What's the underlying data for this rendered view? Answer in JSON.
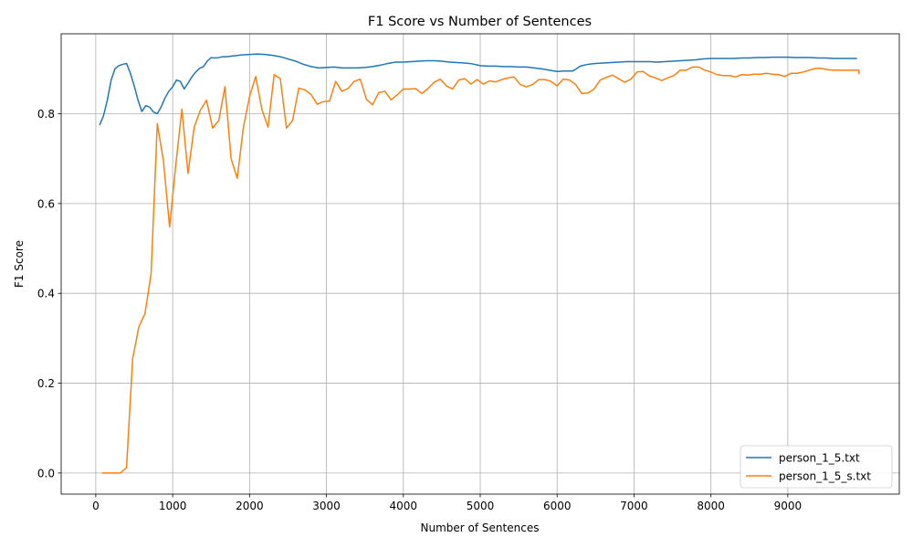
{
  "chart_data": {
    "type": "line",
    "title": "F1 Score vs Number of Sentences",
    "xlabel": "Number of Sentences",
    "ylabel": "F1 Score",
    "xlim": [
      -450,
      10450
    ],
    "ylim": [
      -0.047,
      0.978
    ],
    "xticks": [
      0,
      1000,
      2000,
      3000,
      4000,
      5000,
      6000,
      7000,
      8000,
      9000
    ],
    "yticks": [
      0.0,
      0.2,
      0.4,
      0.6,
      0.8
    ],
    "ytick_labels": [
      "0.0",
      "0.2",
      "0.4",
      "0.6",
      "0.8"
    ],
    "grid": true,
    "legend": "lower-right",
    "series": [
      {
        "name": "person_1_5.txt",
        "color": "#1f77b4",
        "x": [
          50,
          100,
          150,
          200,
          250,
          300,
          350,
          400,
          450,
          500,
          550,
          600,
          650,
          700,
          750,
          800,
          850,
          900,
          950,
          1000,
          1050,
          1100,
          1150,
          1200,
          1250,
          1300,
          1350,
          1400,
          1450,
          1500,
          1550,
          1600,
          1650,
          1700,
          1750,
          1800,
          1900,
          2000,
          2100,
          2200,
          2300,
          2400,
          2500,
          2600,
          2700,
          2800,
          2900,
          3000,
          3100,
          3150,
          3200,
          3300,
          3400,
          3500,
          3600,
          3700,
          3800,
          3900,
          4000,
          4100,
          4200,
          4300,
          4400,
          4500,
          4600,
          4700,
          4800,
          4900,
          5000,
          5100,
          5200,
          5300,
          5400,
          5500,
          5600,
          5700,
          5800,
          5900,
          6000,
          6100,
          6200,
          6250,
          6300,
          6400,
          6500,
          6600,
          6700,
          6800,
          6900,
          7000,
          7100,
          7200,
          7300,
          7400,
          7500,
          7600,
          7700,
          7800,
          7900,
          8000,
          8100,
          8200,
          8300,
          8400,
          8500,
          8600,
          8700,
          8800,
          8900,
          9000,
          9100,
          9200,
          9300,
          9400,
          9500,
          9600,
          9700,
          9800,
          9900
        ],
        "values": [
          0.775,
          0.795,
          0.83,
          0.875,
          0.9,
          0.907,
          0.91,
          0.912,
          0.89,
          0.862,
          0.83,
          0.805,
          0.818,
          0.815,
          0.804,
          0.8,
          0.815,
          0.835,
          0.85,
          0.86,
          0.875,
          0.872,
          0.855,
          0.868,
          0.882,
          0.893,
          0.901,
          0.905,
          0.917,
          0.925,
          0.924,
          0.925,
          0.927,
          0.927,
          0.928,
          0.929,
          0.931,
          0.932,
          0.933,
          0.932,
          0.93,
          0.927,
          0.922,
          0.917,
          0.91,
          0.905,
          0.902,
          0.903,
          0.904,
          0.903,
          0.902,
          0.902,
          0.902,
          0.903,
          0.905,
          0.908,
          0.912,
          0.915,
          0.915,
          0.916,
          0.917,
          0.918,
          0.918,
          0.917,
          0.915,
          0.914,
          0.913,
          0.911,
          0.907,
          0.906,
          0.906,
          0.905,
          0.905,
          0.904,
          0.904,
          0.902,
          0.9,
          0.897,
          0.894,
          0.895,
          0.895,
          0.9,
          0.906,
          0.91,
          0.912,
          0.913,
          0.914,
          0.915,
          0.916,
          0.916,
          0.916,
          0.916,
          0.915,
          0.916,
          0.917,
          0.918,
          0.919,
          0.92,
          0.922,
          0.923,
          0.923,
          0.923,
          0.923,
          0.924,
          0.924,
          0.925,
          0.925,
          0.926,
          0.926,
          0.926,
          0.925,
          0.925,
          0.925,
          0.924,
          0.924,
          0.923,
          0.923,
          0.923,
          0.923
        ]
      },
      {
        "name": "person_1_5_s.txt",
        "color": "#ff7f0e",
        "x": [
          80,
          150,
          250,
          320,
          400,
          480,
          560,
          640,
          720,
          800,
          880,
          960,
          1040,
          1120,
          1200,
          1280,
          1360,
          1440,
          1520,
          1600,
          1680,
          1760,
          1840,
          1920,
          2000,
          2080,
          2160,
          2240,
          2320,
          2400,
          2480,
          2560,
          2640,
          2720,
          2800,
          2880,
          2960,
          3040,
          3120,
          3200,
          3280,
          3360,
          3440,
          3520,
          3600,
          3680,
          3760,
          3840,
          3920,
          4000,
          4080,
          4160,
          4240,
          4320,
          4400,
          4480,
          4560,
          4640,
          4720,
          4800,
          4880,
          4960,
          5040,
          5120,
          5200,
          5280,
          5360,
          5440,
          5520,
          5600,
          5680,
          5760,
          5840,
          5920,
          6000,
          6080,
          6160,
          6240,
          6320,
          6400,
          6480,
          6560,
          6640,
          6720,
          6800,
          6880,
          6960,
          7040,
          7120,
          7200,
          7280,
          7360,
          7440,
          7520,
          7600,
          7680,
          7760,
          7840,
          7920,
          8000,
          8080,
          8160,
          8240,
          8320,
          8400,
          8480,
          8560,
          8640,
          8720,
          8800,
          8880,
          8960,
          9040,
          9120,
          9200,
          9280,
          9360,
          9440,
          9520,
          9600,
          9680,
          9760,
          9840,
          9920,
          9930
        ],
        "values": [
          0.0,
          0.0,
          0.0,
          0.0,
          0.012,
          0.255,
          0.325,
          0.355,
          0.445,
          0.778,
          0.695,
          0.548,
          0.685,
          0.81,
          0.667,
          0.77,
          0.808,
          0.83,
          0.768,
          0.785,
          0.86,
          0.7,
          0.656,
          0.77,
          0.838,
          0.883,
          0.81,
          0.77,
          0.887,
          0.878,
          0.768,
          0.785,
          0.857,
          0.853,
          0.843,
          0.821,
          0.827,
          0.828,
          0.872,
          0.85,
          0.856,
          0.872,
          0.877,
          0.832,
          0.82,
          0.847,
          0.85,
          0.831,
          0.842,
          0.855,
          0.855,
          0.856,
          0.845,
          0.856,
          0.87,
          0.877,
          0.862,
          0.855,
          0.875,
          0.878,
          0.866,
          0.876,
          0.866,
          0.873,
          0.871,
          0.876,
          0.88,
          0.882,
          0.865,
          0.86,
          0.865,
          0.876,
          0.876,
          0.872,
          0.862,
          0.877,
          0.875,
          0.865,
          0.845,
          0.846,
          0.855,
          0.875,
          0.881,
          0.886,
          0.878,
          0.87,
          0.877,
          0.893,
          0.894,
          0.884,
          0.88,
          0.874,
          0.88,
          0.885,
          0.897,
          0.897,
          0.904,
          0.904,
          0.897,
          0.893,
          0.887,
          0.885,
          0.885,
          0.882,
          0.887,
          0.886,
          0.888,
          0.888,
          0.89,
          0.888,
          0.887,
          0.883,
          0.89,
          0.89,
          0.893,
          0.897,
          0.901,
          0.901,
          0.898,
          0.897,
          0.897,
          0.897,
          0.897,
          0.897,
          0.888
        ]
      }
    ]
  }
}
